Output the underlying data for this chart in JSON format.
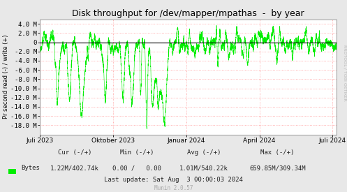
{
  "title": "Disk throughput for /dev/mapper/mpathas  -  by year",
  "ylabel": "Pr second read (-) / write (+)",
  "background_color": "#e8e8e8",
  "plot_bg_color": "#ffffff",
  "grid_color": "#ff9999",
  "line_color": "#00ee00",
  "zero_line_color": "#000000",
  "ylim": [
    -20000000,
    5000000
  ],
  "yticks": [
    -18000000,
    -16000000,
    -14000000,
    -12000000,
    -10000000,
    -8000000,
    -6000000,
    -4000000,
    -2000000,
    0,
    2000000,
    4000000
  ],
  "ytick_labels": [
    "-18.0 M",
    "-16.0 M",
    "-14.0 M",
    "-12.0 M",
    "-10.0 M",
    "-8.0 M",
    "-6.0 M",
    "-4.0 M",
    "-2.0 M",
    "0",
    "2.0 M",
    "4.0 M"
  ],
  "xtick_labels": [
    "Juli 2023",
    "Oktober 2023",
    "Januar 2024",
    "April 2024",
    "Juli 2024"
  ],
  "xtick_positions": [
    0.0,
    0.247,
    0.493,
    0.74,
    0.986
  ],
  "legend_label": "Bytes",
  "cur_text": "Cur (-/+)",
  "cur_val": "1.22M/402.74k",
  "min_text": "Min (-/+)",
  "min_val": "0.00 /   0.00",
  "avg_text": "Avg (-/+)",
  "avg_val": "1.01M/540.22k",
  "max_text": "Max (-/+)",
  "max_val": "659.85M/309.34M",
  "last_update": "Last update: Sat Aug  3 00:00:03 2024",
  "munin_text": "Munin 2.0.57",
  "rrdtool_text": "RRDTOOL / TOBI OETIKER",
  "title_fontsize": 9,
  "tick_fontsize": 6.5,
  "legend_fontsize": 6.5
}
